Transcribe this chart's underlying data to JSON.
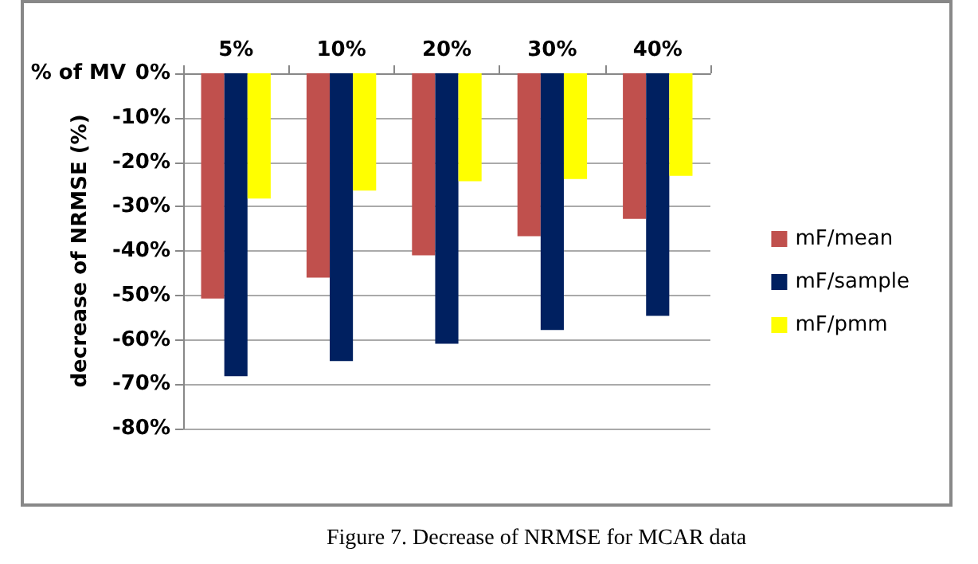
{
  "chart_data": {
    "type": "bar",
    "xlabel": "% of MV",
    "ylabel": "decrease of NRMSE (%)",
    "categories": [
      "5%",
      "10%",
      "20%",
      "30%",
      "40%"
    ],
    "series": [
      {
        "name": "mF/mean",
        "color": "#c0504d",
        "values": [
          -50.7,
          -46.0,
          -41.0,
          -36.7,
          -32.8
        ]
      },
      {
        "name": "mF/sample",
        "color": "#002060",
        "values": [
          -68.2,
          -64.8,
          -60.9,
          -57.8,
          -54.6
        ]
      },
      {
        "name": "mF/pmm",
        "color": "#ffff00",
        "values": [
          -28.2,
          -26.4,
          -24.3,
          -23.8,
          -23.1
        ]
      }
    ],
    "ylim": [
      -80,
      0
    ],
    "yticks": [
      {
        "value": 0,
        "label": "0%"
      },
      {
        "value": -10,
        "label": "-10%"
      },
      {
        "value": -20,
        "label": "-20%"
      },
      {
        "value": -30,
        "label": "-30%"
      },
      {
        "value": -40,
        "label": "-40%"
      },
      {
        "value": -50,
        "label": "-50%"
      },
      {
        "value": -60,
        "label": "-60%"
      },
      {
        "value": -70,
        "label": "-70%"
      },
      {
        "value": -80,
        "label": "-80%"
      }
    ],
    "grid": "y",
    "legend": "right",
    "annotations": [
      "Figure 7. Decrease of NRMSE for MCAR data"
    ]
  }
}
